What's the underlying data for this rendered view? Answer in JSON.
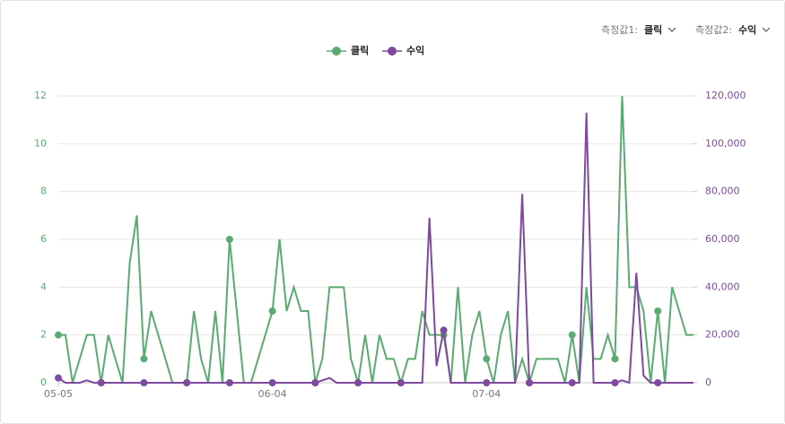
{
  "controls": [
    {
      "label": "측정값1:",
      "value": "클릭"
    },
    {
      "label": "측정값2:",
      "value": "수익"
    }
  ],
  "chart_data": {
    "type": "line",
    "categories": [
      "05-05",
      null,
      null,
      null,
      null,
      null,
      null,
      null,
      null,
      null,
      null,
      null,
      null,
      null,
      null,
      null,
      null,
      null,
      null,
      null,
      null,
      null,
      null,
      null,
      null,
      null,
      null,
      null,
      null,
      null,
      "06-04",
      null,
      null,
      null,
      null,
      null,
      null,
      null,
      null,
      null,
      null,
      null,
      null,
      null,
      null,
      null,
      null,
      null,
      null,
      null,
      null,
      null,
      null,
      null,
      null,
      null,
      null,
      null,
      null,
      null,
      "07-04",
      null,
      null,
      null,
      null,
      null,
      null,
      null,
      null,
      null,
      null,
      null,
      null,
      null,
      null,
      null,
      null,
      null,
      null,
      null,
      null,
      null,
      null,
      null,
      null,
      null,
      null,
      null,
      null,
      null
    ],
    "series": [
      {
        "name": "클릭",
        "color": "#5aaa72",
        "values": [
          2,
          2,
          0,
          1,
          2,
          2,
          0,
          2,
          1,
          0,
          5,
          7,
          1,
          3,
          2,
          1,
          0,
          0,
          0,
          3,
          1,
          0,
          3,
          0,
          6,
          3,
          0,
          0,
          1,
          2,
          3,
          6,
          3,
          4,
          3,
          3,
          0,
          1,
          4,
          4,
          4,
          1,
          0,
          2,
          0,
          2,
          1,
          1,
          0,
          1,
          1,
          3,
          2,
          2,
          2,
          0,
          4,
          0,
          2,
          3,
          1,
          0,
          2,
          3,
          0,
          1,
          0,
          1,
          1,
          1,
          1,
          0,
          2,
          0,
          4,
          1,
          1,
          2,
          1,
          12,
          4,
          4,
          3,
          0,
          3,
          0,
          4,
          3,
          2,
          2
        ]
      },
      {
        "name": "수익",
        "color": "#7e4a9e",
        "axis": "y2",
        "values": [
          2000,
          0,
          0,
          0,
          1000,
          0,
          0,
          0,
          0,
          0,
          0,
          0,
          0,
          0,
          0,
          0,
          0,
          0,
          0,
          0,
          0,
          0,
          0,
          0,
          0,
          0,
          0,
          0,
          0,
          0,
          0,
          0,
          0,
          0,
          0,
          0,
          0,
          1000,
          2000,
          0,
          0,
          0,
          0,
          0,
          0,
          0,
          0,
          0,
          0,
          0,
          0,
          0,
          69000,
          7000,
          22000,
          0,
          0,
          0,
          0,
          0,
          0,
          0,
          0,
          0,
          0,
          79000,
          0,
          0,
          0,
          0,
          0,
          0,
          0,
          0,
          113000,
          0,
          0,
          0,
          0,
          1000,
          0,
          46000,
          3000,
          0,
          0,
          0,
          0,
          0,
          0,
          0
        ]
      }
    ],
    "ylim": [
      0,
      12
    ],
    "yticks": [
      0,
      2,
      4,
      6,
      8,
      10,
      12
    ],
    "y2lim": [
      0,
      120000
    ],
    "y2ticks": [
      0,
      {
        "value": 20000,
        "label": "20,000"
      },
      {
        "value": 40000,
        "label": "40,000"
      },
      {
        "value": 60000,
        "label": "60,000"
      },
      {
        "value": 80000,
        "label": "80,000"
      },
      {
        "value": 100000,
        "label": "100,000"
      },
      {
        "value": 120000,
        "label": "120,000"
      }
    ],
    "grid": true,
    "legend": "top"
  }
}
